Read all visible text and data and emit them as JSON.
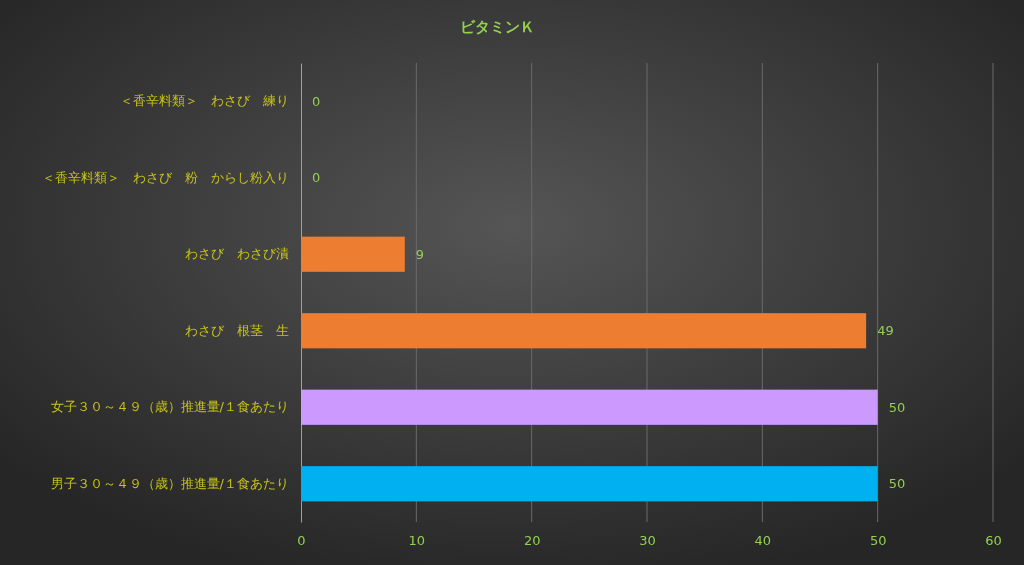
{
  "chart_data": {
    "type": "bar",
    "orientation": "horizontal",
    "title": "ビタミンＫ",
    "categories": [
      "＜香辛料類＞　わさび　練り",
      "＜香辛料類＞　わさび　粉　からし粉入り",
      "わさび　わさび漬",
      "わさび　根茎　生",
      "女子３０～４９（歳）推進量/１食あたり",
      "男子３０～４９（歳）推進量/１食あたり"
    ],
    "values": [
      0,
      0,
      9,
      49,
      50,
      50
    ],
    "colors": [
      "#ed7d31",
      "#ed7d31",
      "#ed7d31",
      "#ed7d31",
      "#cc99ff",
      "#00b0f0"
    ],
    "xlim": [
      0,
      60
    ],
    "xticks": [
      0,
      10,
      20,
      30,
      40,
      50,
      60
    ],
    "grid": "x",
    "data_labels": true
  }
}
